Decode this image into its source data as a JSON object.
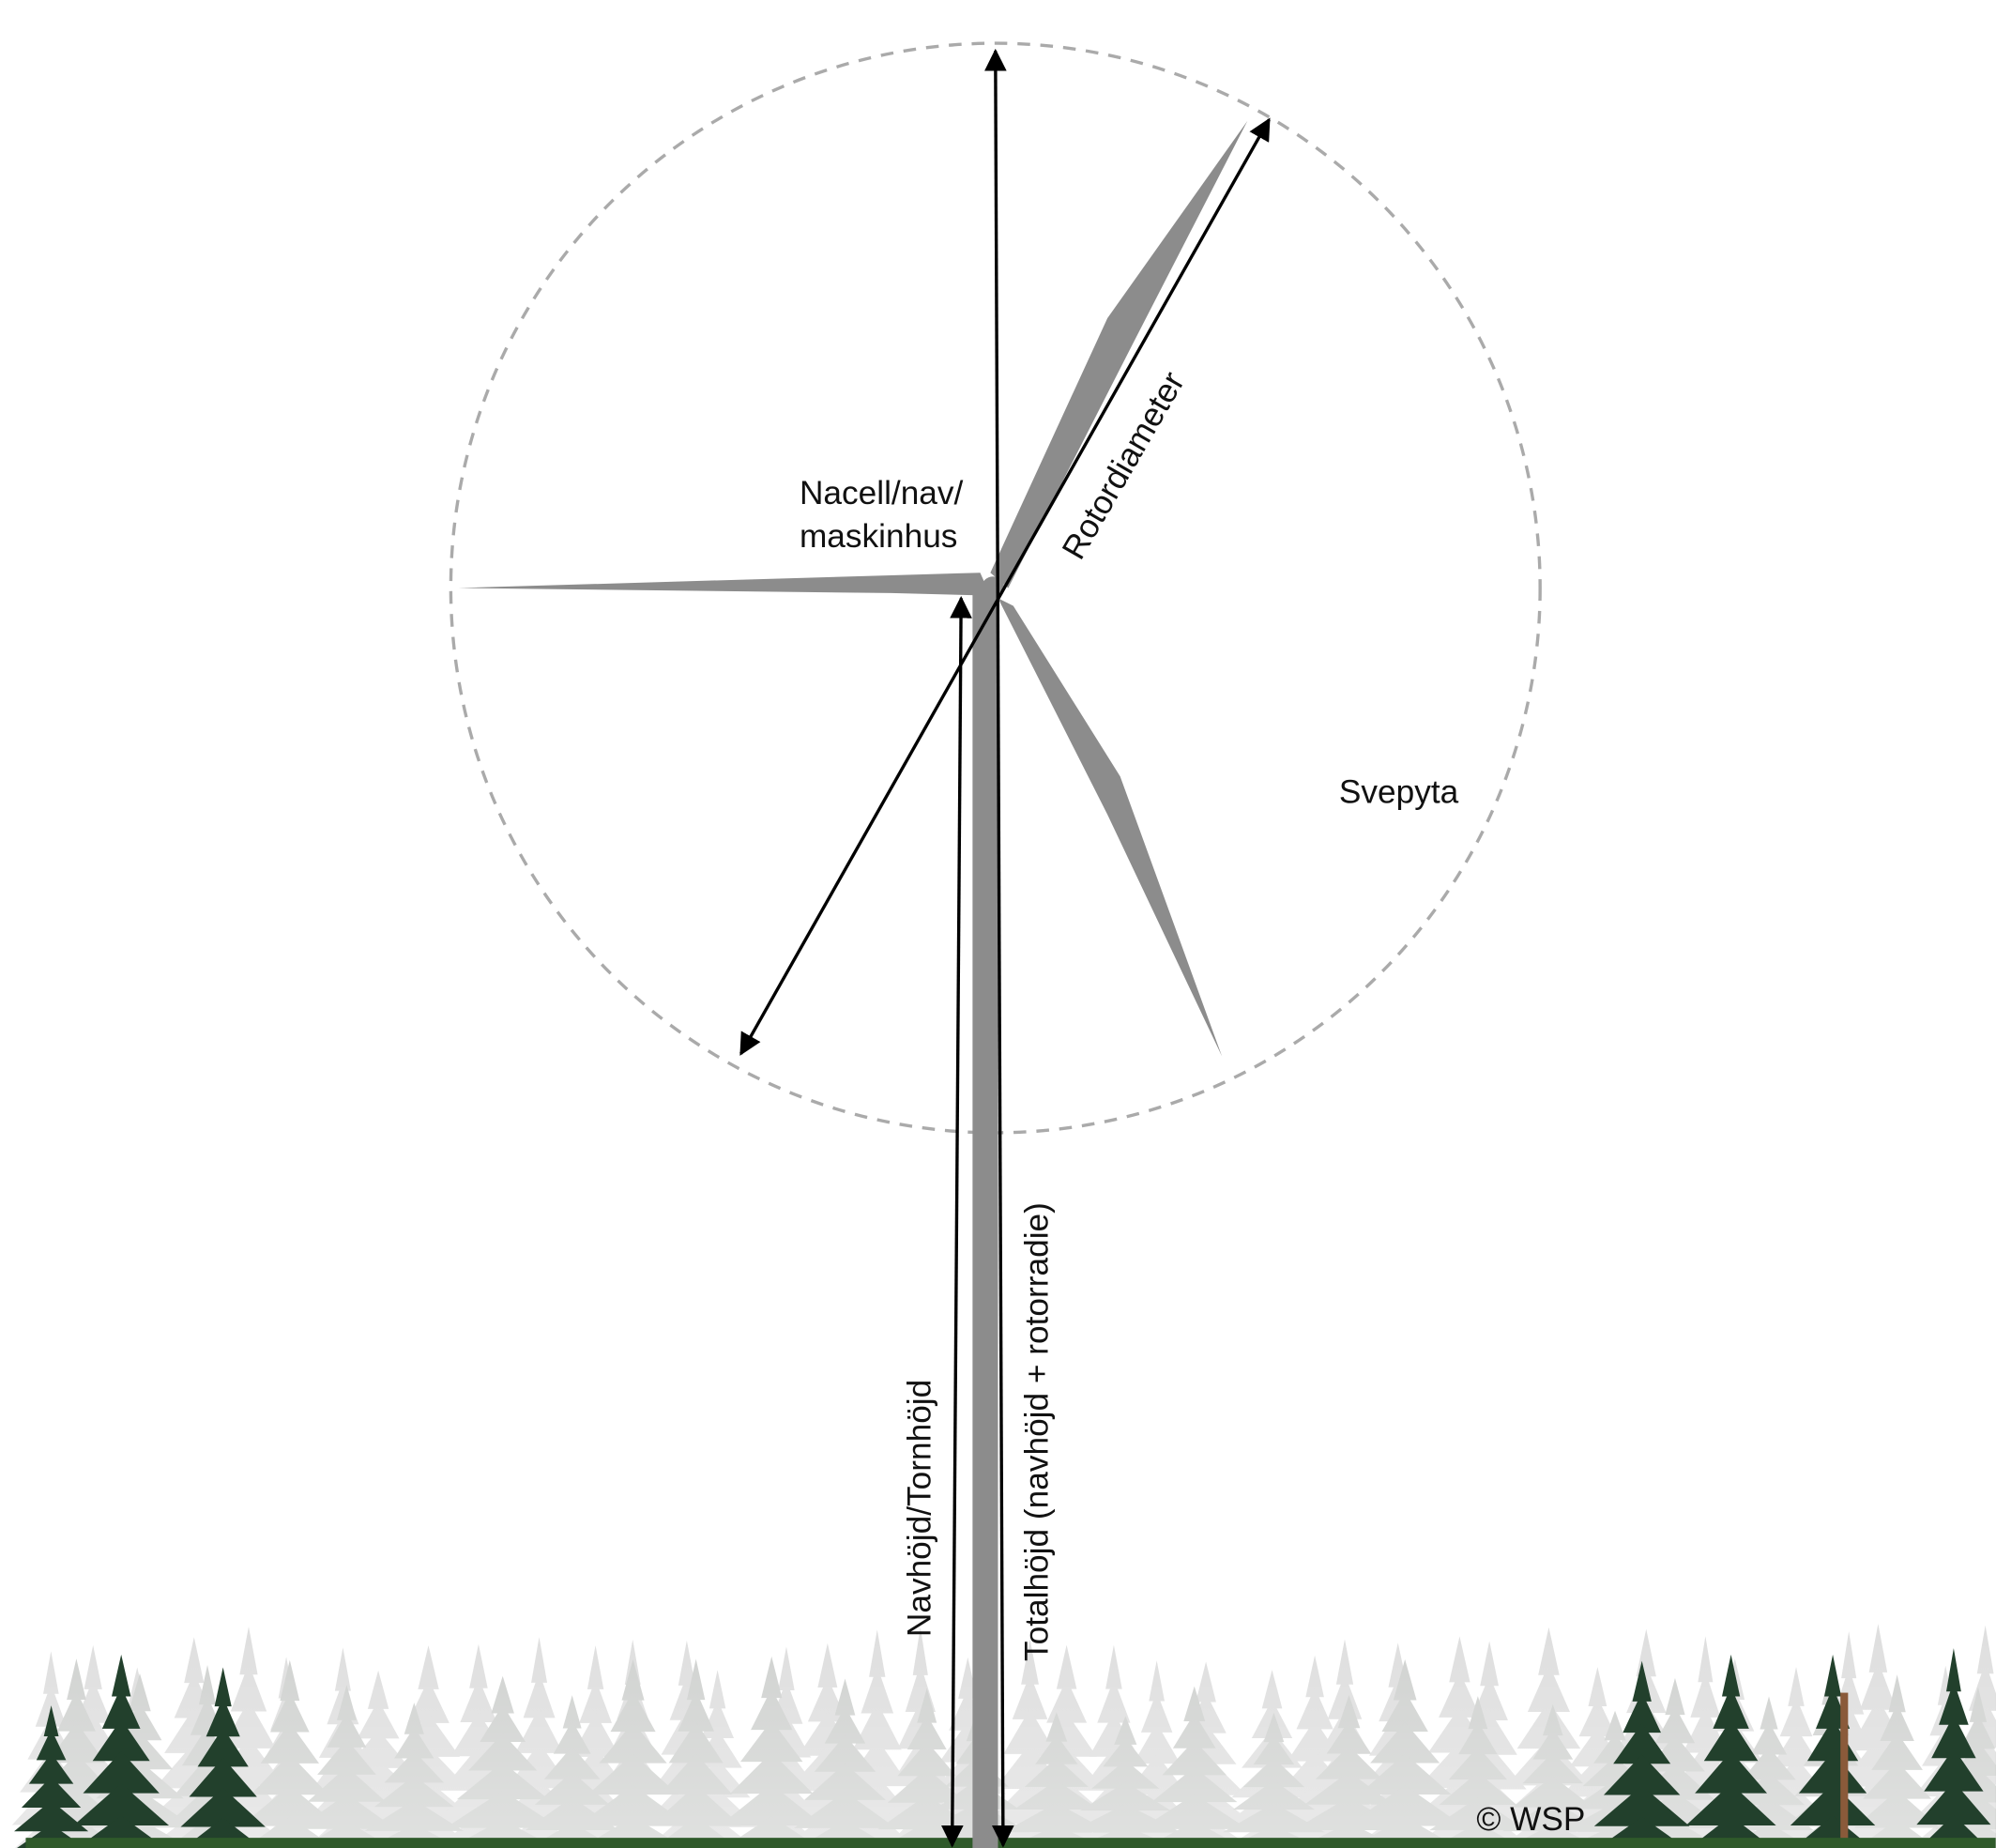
{
  "labels": {
    "nacelle": [
      "Nacell/nav/",
      "maskinhus"
    ],
    "rotor_diameter": "Rotordiameter",
    "swept_area": "Svepyta",
    "hub_height": "Navhöjd/Tornhöjd",
    "total_height": "Totalhöjd (navhöjd + rotorradie)",
    "copyright": "© WSP"
  }
}
